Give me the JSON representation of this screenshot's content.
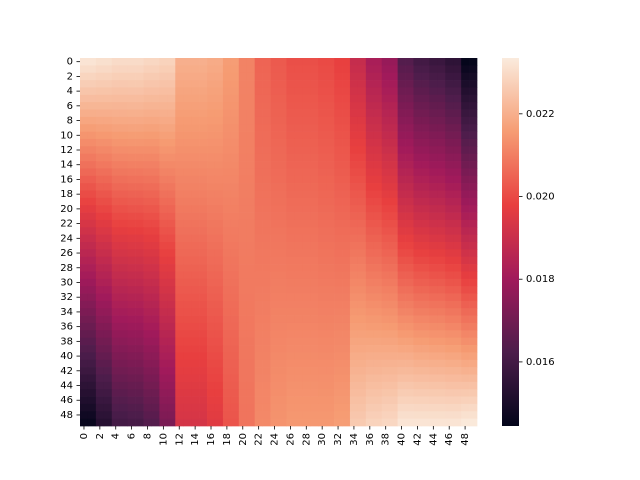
{
  "chart_data": {
    "type": "heatmap",
    "title": "",
    "xlabel": "",
    "ylabel": "",
    "rows": 50,
    "cols": 50,
    "x_tick_labels": [
      "0",
      "2",
      "4",
      "6",
      "8",
      "10",
      "12",
      "14",
      "16",
      "18",
      "20",
      "22",
      "24",
      "26",
      "28",
      "30",
      "32",
      "34",
      "36",
      "38",
      "40",
      "42",
      "44",
      "46",
      "48"
    ],
    "y_tick_labels": [
      "0",
      "2",
      "4",
      "6",
      "8",
      "10",
      "12",
      "14",
      "16",
      "18",
      "20",
      "22",
      "24",
      "26",
      "28",
      "30",
      "32",
      "34",
      "36",
      "38",
      "40",
      "42",
      "44",
      "46",
      "48"
    ],
    "colorbar": {
      "min": 0.01445,
      "max": 0.02335,
      "ticks": [
        "0.016",
        "0.018",
        "0.020",
        "0.022"
      ],
      "colormap": "rocket",
      "colormap_stops": [
        "#03051a",
        "#4c1d4b",
        "#a11a5b",
        "#e83f3f",
        "#f69c73",
        "#faebdd"
      ]
    },
    "column_groups": [
      {
        "cols": [
          0,
          1
        ],
        "top": 0.0232,
        "bottom": 0.0146
      },
      {
        "cols": [
          2,
          3
        ],
        "top": 0.0231,
        "bottom": 0.0153
      },
      {
        "cols": [
          4,
          5
        ],
        "top": 0.023,
        "bottom": 0.016
      },
      {
        "cols": [
          6,
          7
        ],
        "top": 0.023,
        "bottom": 0.0161
      },
      {
        "cols": [
          8,
          9
        ],
        "top": 0.0229,
        "bottom": 0.0164
      },
      {
        "cols": [
          10,
          11
        ],
        "top": 0.0228,
        "bottom": 0.0172
      },
      {
        "cols": [
          12,
          13
        ],
        "top": 0.022,
        "bottom": 0.0193
      },
      {
        "cols": [
          14,
          15
        ],
        "top": 0.022,
        "bottom": 0.0193
      },
      {
        "cols": [
          16,
          17
        ],
        "top": 0.0219,
        "bottom": 0.0196
      },
      {
        "cols": [
          18,
          19
        ],
        "top": 0.0216,
        "bottom": 0.0202
      },
      {
        "cols": [
          20,
          21
        ],
        "top": 0.0211,
        "bottom": 0.0208
      },
      {
        "cols": [
          22,
          23
        ],
        "top": 0.0205,
        "bottom": 0.0212
      },
      {
        "cols": [
          24,
          25
        ],
        "top": 0.0203,
        "bottom": 0.0214
      },
      {
        "cols": [
          26,
          27
        ],
        "top": 0.0201,
        "bottom": 0.0215
      },
      {
        "cols": [
          28,
          29
        ],
        "top": 0.0201,
        "bottom": 0.0215
      },
      {
        "cols": [
          30,
          31
        ],
        "top": 0.02,
        "bottom": 0.0215
      },
      {
        "cols": [
          32,
          33
        ],
        "top": 0.0198,
        "bottom": 0.0216
      },
      {
        "cols": [
          34,
          35
        ],
        "top": 0.0189,
        "bottom": 0.0226
      },
      {
        "cols": [
          36,
          37
        ],
        "top": 0.0182,
        "bottom": 0.0228
      },
      {
        "cols": [
          38,
          39
        ],
        "top": 0.0178,
        "bottom": 0.0229
      },
      {
        "cols": [
          40,
          41
        ],
        "top": 0.0164,
        "bottom": 0.0232
      },
      {
        "cols": [
          42,
          43
        ],
        "top": 0.016,
        "bottom": 0.0232
      },
      {
        "cols": [
          44,
          45
        ],
        "top": 0.0158,
        "bottom": 0.0232
      },
      {
        "cols": [
          46,
          47
        ],
        "top": 0.0155,
        "bottom": 0.0232
      },
      {
        "cols": [
          48,
          49
        ],
        "top": 0.0145,
        "bottom": 0.0233
      }
    ]
  }
}
